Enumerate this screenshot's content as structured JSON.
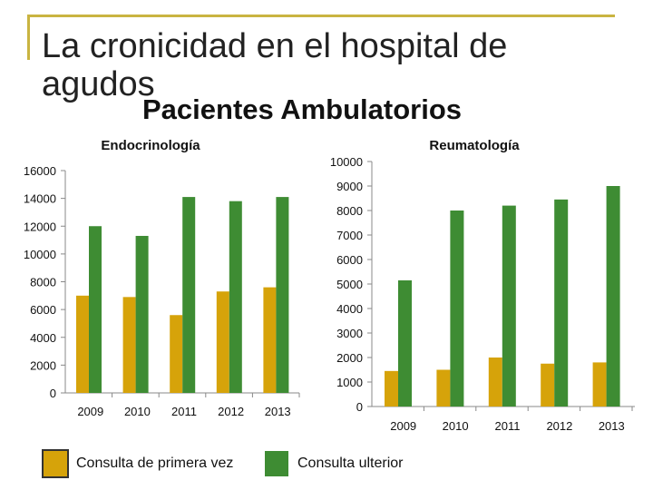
{
  "title": "La cronicidad en el hospital de agudos",
  "subtitle": "Pacientes Ambulatorios",
  "colors": {
    "primera": "#d6a30a",
    "ulterior": "#3e8c33",
    "frame": "#c9b441"
  },
  "legend": [
    {
      "label": "Consulta de primera vez",
      "color": "#d6a30a"
    },
    {
      "label": "Consulta ulterior",
      "color": "#3e8c33"
    }
  ],
  "chart_data": [
    {
      "type": "bar",
      "title": "Endocrinología",
      "categories": [
        "2009",
        "2010",
        "2011",
        "2012",
        "2013"
      ],
      "ylim": [
        0,
        16000
      ],
      "yticks": [
        0,
        2000,
        4000,
        6000,
        8000,
        10000,
        12000,
        14000,
        16000
      ],
      "grid": false,
      "series": [
        {
          "name": "Consulta de primera vez",
          "values": [
            7000,
            6900,
            5600,
            7300,
            7600
          ]
        },
        {
          "name": "Consulta ulterior",
          "values": [
            12000,
            11300,
            14100,
            13800,
            14100
          ]
        }
      ]
    },
    {
      "type": "bar",
      "title": "Reumatología",
      "categories": [
        "2009",
        "2010",
        "2011",
        "2012",
        "2013"
      ],
      "ylim": [
        0,
        10000
      ],
      "yticks": [
        0,
        1000,
        2000,
        3000,
        4000,
        5000,
        6000,
        7000,
        8000,
        9000,
        10000
      ],
      "grid": false,
      "series": [
        {
          "name": "Consulta de primera vez",
          "values": [
            1450,
            1500,
            2000,
            1750,
            1800
          ]
        },
        {
          "name": "Consulta ulterior",
          "values": [
            5150,
            8000,
            8200,
            8450,
            9000
          ]
        }
      ]
    }
  ]
}
